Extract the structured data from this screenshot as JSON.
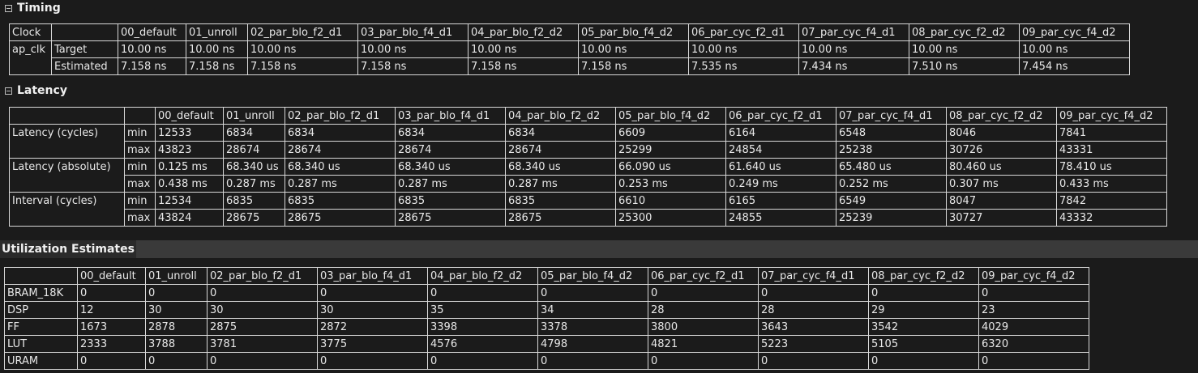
{
  "timing": {
    "title": "Timing",
    "header": [
      "Clock",
      "",
      "00_default",
      "01_unroll",
      "02_par_blo_f2_d1",
      "03_par_blo_f4_d1",
      "04_par_blo_f2_d2",
      "05_par_blo_f4_d2",
      "06_par_cyc_f2_d1",
      "07_par_cyc_f4_d1",
      "08_par_cyc_f2_d2",
      "09_par_cyc_f4_d2"
    ],
    "rows": [
      [
        "ap_clk",
        "Target",
        "10.00 ns",
        "10.00 ns",
        "10.00 ns",
        "10.00 ns",
        "10.00 ns",
        "10.00 ns",
        "10.00 ns",
        "10.00 ns",
        "10.00 ns",
        "10.00 ns"
      ],
      [
        "",
        "Estimated",
        "7.158 ns",
        "7.158 ns",
        "7.158 ns",
        "7.158 ns",
        "7.158 ns",
        "7.158 ns",
        "7.535 ns",
        "7.434 ns",
        "7.510 ns",
        "7.454 ns"
      ]
    ]
  },
  "latency": {
    "title": "Latency",
    "header": [
      "",
      "",
      "00_default",
      "01_unroll",
      "02_par_blo_f2_d1",
      "03_par_blo_f4_d1",
      "04_par_blo_f2_d2",
      "05_par_blo_f4_d2",
      "06_par_cyc_f2_d1",
      "07_par_cyc_f4_d1",
      "08_par_cyc_f2_d2",
      "09_par_cyc_f4_d2"
    ],
    "rows": [
      [
        "Latency (cycles)",
        "min",
        "12533",
        "6834",
        "6834",
        "6834",
        "6834",
        "6609",
        "6164",
        "6548",
        "8046",
        "7841"
      ],
      [
        "",
        "max",
        "43823",
        "28674",
        "28674",
        "28674",
        "28674",
        "25299",
        "24854",
        "25238",
        "30726",
        "43331"
      ],
      [
        "Latency (absolute)",
        "min",
        "0.125 ms",
        "68.340 us",
        "68.340 us",
        "68.340 us",
        "68.340 us",
        "66.090 us",
        "61.640 us",
        "65.480 us",
        "80.460 us",
        "78.410 us"
      ],
      [
        "",
        "max",
        "0.438 ms",
        "0.287 ms",
        "0.287 ms",
        "0.287 ms",
        "0.287 ms",
        "0.253 ms",
        "0.249 ms",
        "0.252 ms",
        "0.307 ms",
        "0.433 ms"
      ],
      [
        "Interval (cycles)",
        "min",
        "12534",
        "6835",
        "6835",
        "6835",
        "6835",
        "6610",
        "6165",
        "6549",
        "8047",
        "7842"
      ],
      [
        "",
        "max",
        "43824",
        "28675",
        "28675",
        "28675",
        "28675",
        "25300",
        "24855",
        "25239",
        "30727",
        "43332"
      ]
    ]
  },
  "utilization": {
    "title": "Utilization Estimates",
    "header": [
      "",
      "00_default",
      "01_unroll",
      "02_par_blo_f2_d1",
      "03_par_blo_f4_d1",
      "04_par_blo_f2_d2",
      "05_par_blo_f4_d2",
      "06_par_cyc_f2_d1",
      "07_par_cyc_f4_d1",
      "08_par_cyc_f2_d2",
      "09_par_cyc_f4_d2"
    ],
    "rows": [
      [
        "BRAM_18K",
        "0",
        "0",
        "0",
        "0",
        "0",
        "0",
        "0",
        "0",
        "0",
        "0"
      ],
      [
        "DSP",
        "12",
        "30",
        "30",
        "30",
        "35",
        "34",
        "28",
        "28",
        "29",
        "23"
      ],
      [
        "FF",
        "1673",
        "2878",
        "2875",
        "2872",
        "3398",
        "3378",
        "3800",
        "3643",
        "3542",
        "4029"
      ],
      [
        "LUT",
        "2333",
        "3788",
        "3781",
        "3775",
        "4576",
        "4798",
        "4821",
        "5223",
        "5105",
        "6320"
      ],
      [
        "URAM",
        "0",
        "0",
        "0",
        "0",
        "0",
        "0",
        "0",
        "0",
        "0",
        "0"
      ]
    ]
  }
}
